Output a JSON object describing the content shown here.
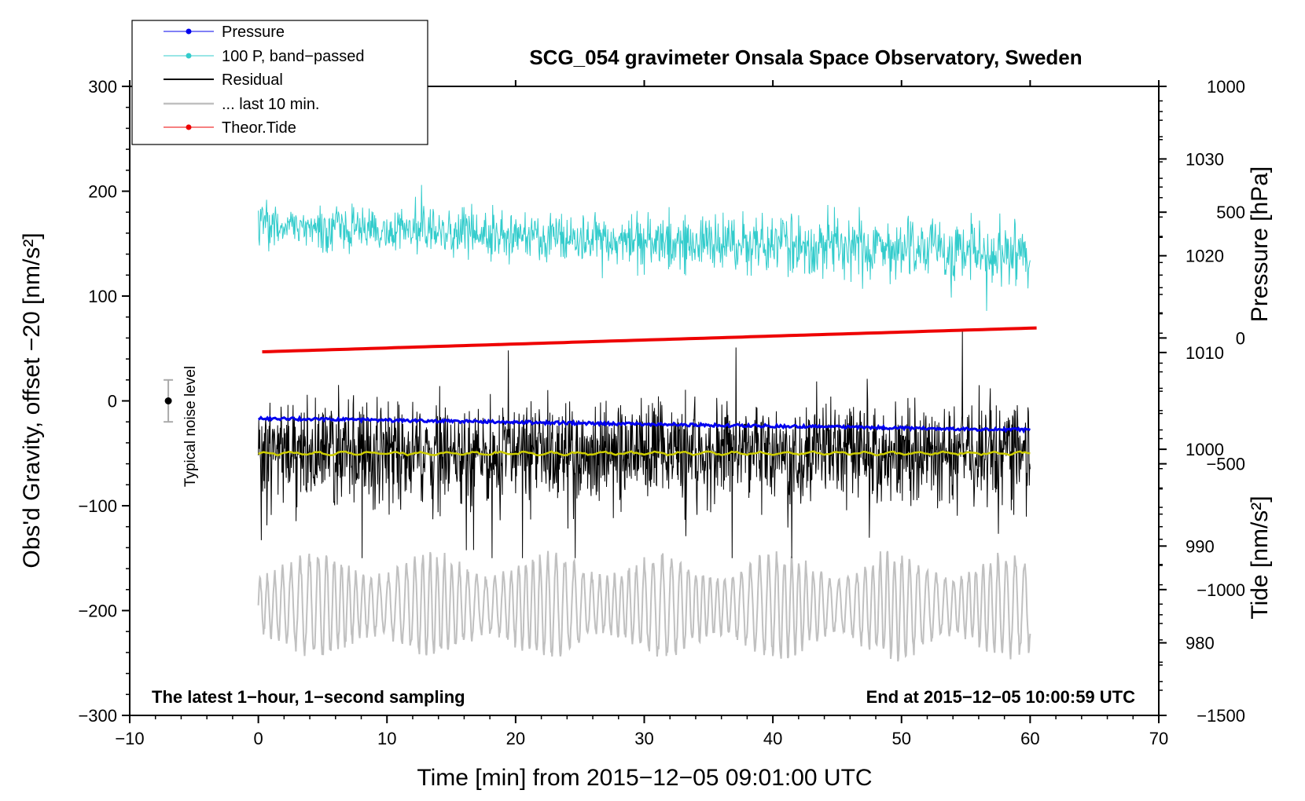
{
  "chart_data": {
    "type": "line",
    "title": "SCG_054 gravimeter Onsala Space Observatory, Sweden",
    "xlabel": "Time [min] from 2015−12−05 09:01:00 UTC",
    "ylabel_left": "Obs'd Gravity, offset −20 [nm/s²]",
    "ylabel_right_top": "Pressure [hPa]",
    "ylabel_right_bottom": "Tide [nm/s²]",
    "xlim": [
      -10,
      70
    ],
    "ylim_left": [
      -300,
      300
    ],
    "ylim_pressure": [
      972.5,
      1037.5
    ],
    "ylim_tide": [
      -1500,
      1000
    ],
    "x_ticks": [
      "−10",
      "0",
      "10",
      "20",
      "30",
      "40",
      "50",
      "60",
      "70"
    ],
    "x_tick_values": [
      -10,
      0,
      10,
      20,
      30,
      40,
      50,
      60,
      70
    ],
    "y_left_ticks": [
      "300",
      "200",
      "100",
      "0",
      "−100",
      "−200",
      "−300"
    ],
    "y_left_tick_values": [
      300,
      200,
      100,
      0,
      -100,
      -200,
      -300
    ],
    "pressure_ticks": [
      "1030",
      "1020",
      "1010",
      "1000",
      "990",
      "980"
    ],
    "pressure_tick_values": [
      1030,
      1020,
      1010,
      1000,
      990,
      980
    ],
    "tide_ticks": [
      "1000",
      "500",
      "0",
      "−500",
      "−1000",
      "−1500"
    ],
    "tide_tick_values": [
      1000,
      500,
      0,
      -500,
      -1000,
      -1500
    ],
    "series": [
      {
        "name": "Pressure",
        "color": "#0000ee",
        "unit": "hPa",
        "start": 1003.2,
        "end": 1002.0,
        "noise": 0.3,
        "width": 3
      },
      {
        "name": "100 P, band−passed",
        "color": "#33cccc",
        "unit": "nm/s²",
        "center_start": 168,
        "center_end": 138,
        "amp_start": 14,
        "amp_end": 22
      },
      {
        "name": "Residual",
        "color": "#000000",
        "unit": "nm/s²",
        "center": -50,
        "amp": 45
      },
      {
        "name": "... last 10 min.",
        "color": "#c0c0c0",
        "unit": "nm/s²",
        "center": -195,
        "amp": 55
      },
      {
        "name": "Theor.Tide",
        "color": "#ee0000",
        "unit": "nm/s²",
        "start": -55,
        "end": 40,
        "width": 4
      }
    ],
    "smoothed_residual": {
      "color": "#cccc00",
      "value": -50
    },
    "noise_level": {
      "label": "Typical noise level",
      "x": -7,
      "value": 0,
      "error": 20
    },
    "x_range_data": [
      0,
      60
    ],
    "bottom_left_note": "The latest 1−hour, 1−second sampling",
    "bottom_right_note": "End at 2015−12−05 10:00:59 UTC"
  }
}
